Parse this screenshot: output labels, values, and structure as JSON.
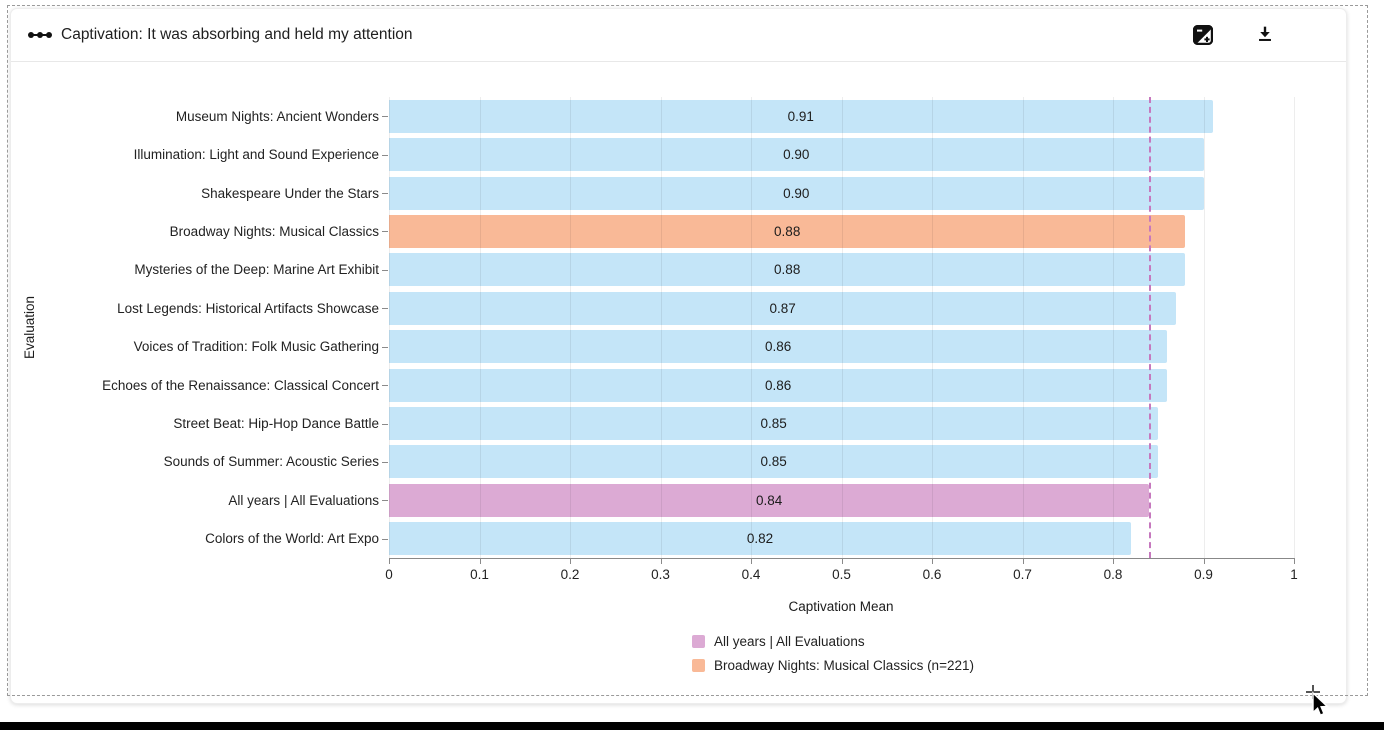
{
  "header": {
    "title": "Captivation: It was absorbing and held my attention"
  },
  "icons": {
    "drag_handle": "drag-handle-icon",
    "scale_toggle": "plus-minus-contrast-icon",
    "download": "download-icon",
    "resize": "plus-resize-handle-icon",
    "cursor": "mouse-arrow-cursor"
  },
  "chart_data": {
    "type": "bar",
    "orientation": "horizontal",
    "title": "Captivation: It was absorbing and held my attention",
    "categories": [
      "Museum Nights: Ancient Wonders",
      "Illumination: Light and Sound Experience",
      "Shakespeare Under the Stars",
      "Broadway Nights: Musical Classics",
      "Mysteries of the Deep: Marine Art Exhibit",
      "Lost Legends: Historical Artifacts Showcase",
      "Voices of Tradition: Folk Music Gathering",
      "Echoes of the Renaissance: Classical Concert",
      "Street Beat: Hip-Hop Dance Battle",
      "Sounds of Summer: Acoustic Series",
      "All years | All Evaluations",
      "Colors of the World: Art Expo"
    ],
    "values": [
      0.91,
      0.9,
      0.9,
      0.88,
      0.88,
      0.87,
      0.86,
      0.86,
      0.85,
      0.85,
      0.84,
      0.82
    ],
    "value_labels": [
      "0.91",
      "0.90",
      "0.90",
      "0.88",
      "0.88",
      "0.87",
      "0.86",
      "0.86",
      "0.85",
      "0.85",
      "0.84",
      "0.82"
    ],
    "color_keys": [
      "default",
      "default",
      "default",
      "highlight",
      "default",
      "default",
      "default",
      "default",
      "default",
      "default",
      "baseline",
      "default"
    ],
    "colors": {
      "default": "#c4e5f8",
      "highlight": "#f9b997",
      "baseline": "#dcaad4",
      "reference_line": "#c678be",
      "grid": "rgba(0,0,0,0.07)",
      "axis": "#888888"
    },
    "xlabel": "Captivation Mean",
    "ylabel": "Evaluation",
    "xlim": [
      0,
      1
    ],
    "xticks": [
      "0",
      "0.1",
      "0.2",
      "0.3",
      "0.4",
      "0.5",
      "0.6",
      "0.7",
      "0.8",
      "0.9",
      "1"
    ],
    "grid": true,
    "reference_line": {
      "value": 0.84,
      "style": "dashed"
    },
    "legend_position": "bottom",
    "legend": [
      {
        "label": "All years | All Evaluations",
        "color_key": "baseline"
      },
      {
        "label": "Broadway Nights: Musical Classics (n=221)",
        "color_key": "highlight"
      }
    ]
  }
}
